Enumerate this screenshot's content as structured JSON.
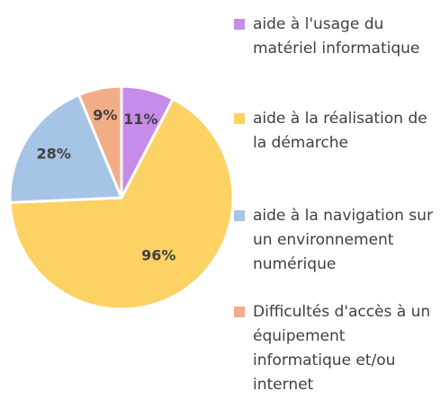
{
  "chart_data": {
    "type": "pie",
    "categories": [
      "aide à l'usage du matériel informatique",
      "aide à la réalisation de la démarche",
      "aide à la navigation sur un environnement numérique",
      "Difficultés d'accès à un équipement informatique et/ou internet"
    ],
    "values": [
      11,
      96,
      28,
      9
    ],
    "value_labels": [
      "11%",
      "96%",
      "28%",
      "9%"
    ],
    "colors": [
      "#c78bea",
      "#fcd265",
      "#a6c4e6",
      "#f2ad86"
    ],
    "legend_position": "right",
    "title": ""
  }
}
